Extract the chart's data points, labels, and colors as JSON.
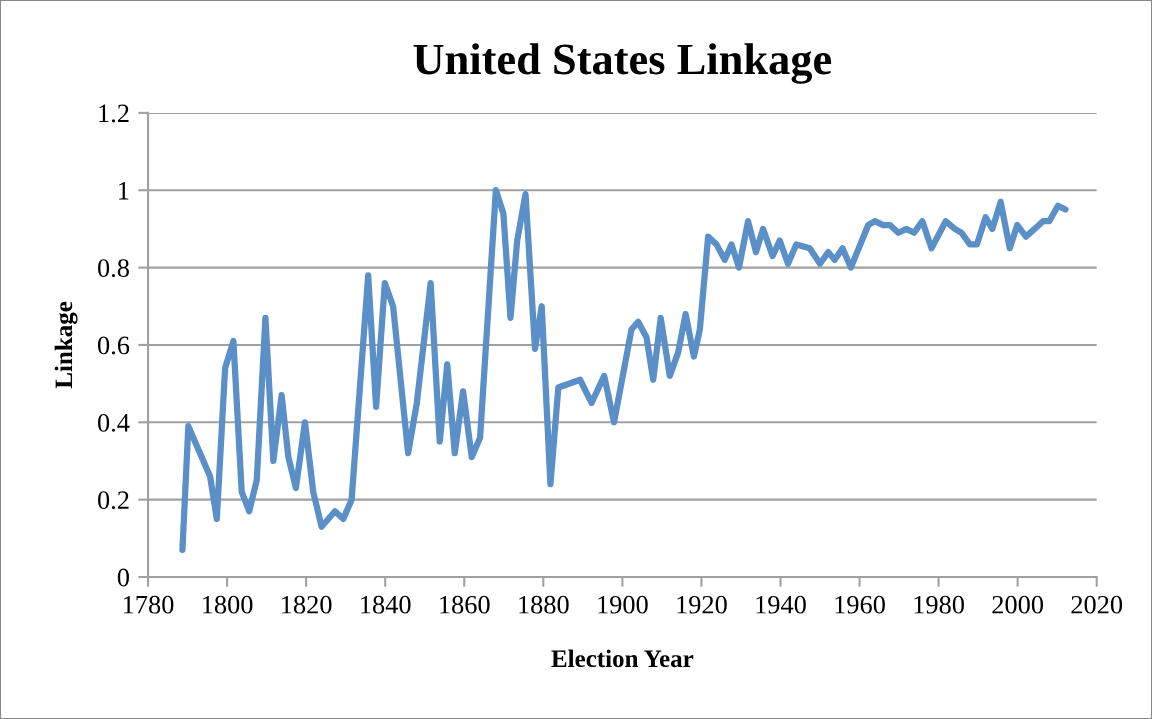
{
  "chart_data": {
    "type": "line",
    "title": "United States Linkage",
    "xlabel": "Election Year",
    "ylabel": "Linkage",
    "x": [
      1788.7,
      1790.2,
      1795.7,
      1797.4,
      1799.5,
      1801.6,
      1803.7,
      1805.6,
      1807.5,
      1809.7,
      1811.7,
      1813.8,
      1815.5,
      1817.4,
      1819.7,
      1821.8,
      1823.9,
      1827.3,
      1829.4,
      1831.5,
      1835.7,
      1837.7,
      1839.9,
      1842.0,
      1845.8,
      1848.0,
      1851.5,
      1853.8,
      1855.7,
      1857.6,
      1859.7,
      1861.9,
      1864.0,
      1868.0,
      1869.9,
      1871.7,
      1873.4,
      1875.5,
      1877.9,
      1879.6,
      1881.8,
      1883.8,
      1889.3,
      1892.2,
      1895.4,
      1897.9,
      1902.3,
      1904.0,
      1906.1,
      1907.8,
      1909.7,
      1912.0,
      1914.1,
      1916.0,
      1918.1,
      1919.6,
      1921.7,
      1923.8,
      1925.9,
      1927.6,
      1929.5,
      1931.8,
      1933.8,
      1935.6,
      1938.0,
      1939.8,
      1941.9,
      1944.0,
      1947.4,
      1950.0,
      1952.1,
      1953.7,
      1955.7,
      1957.8,
      1962.2,
      1963.9,
      1966.0,
      1967.7,
      1969.8,
      1971.9,
      1973.8,
      1975.9,
      1978.2,
      1981.8,
      1984.1,
      1985.8,
      1987.9,
      1989.7,
      1991.9,
      1993.6,
      1995.7,
      1998.0,
      1999.9,
      2002.1,
      2004.3,
      2006.4,
      2008.0,
      2010.2,
      2012.1
    ],
    "series": [
      {
        "color": "#5b8fc7",
        "values": [
          0.07,
          0.39,
          0.26,
          0.15,
          0.54,
          0.61,
          0.22,
          0.17,
          0.25,
          0.67,
          0.3,
          0.47,
          0.31,
          0.23,
          0.4,
          0.22,
          0.13,
          0.17,
          0.15,
          0.2,
          0.78,
          0.44,
          0.76,
          0.7,
          0.32,
          0.45,
          0.76,
          0.35,
          0.55,
          0.32,
          0.48,
          0.31,
          0.36,
          1.0,
          0.94,
          0.67,
          0.87,
          0.99,
          0.59,
          0.7,
          0.24,
          0.49,
          0.51,
          0.45,
          0.52,
          0.4,
          0.64,
          0.66,
          0.62,
          0.51,
          0.67,
          0.52,
          0.58,
          0.68,
          0.57,
          0.64,
          0.88,
          0.86,
          0.82,
          0.86,
          0.8,
          0.92,
          0.84,
          0.9,
          0.83,
          0.87,
          0.81,
          0.86,
          0.85,
          0.81,
          0.84,
          0.82,
          0.85,
          0.8,
          0.91,
          0.92,
          0.91,
          0.91,
          0.89,
          0.9,
          0.89,
          0.92,
          0.85,
          0.92,
          0.9,
          0.89,
          0.86,
          0.86,
          0.93,
          0.9,
          0.97,
          0.85,
          0.91,
          0.88,
          0.9,
          0.92,
          0.92,
          0.96,
          0.95
        ]
      }
    ],
    "xlim": [
      1780,
      2020
    ],
    "xticks": [
      1780,
      1800,
      1820,
      1840,
      1860,
      1880,
      1900,
      1920,
      1940,
      1960,
      1980,
      2000,
      2020
    ],
    "ylim": [
      0,
      1.2
    ],
    "yticks": [
      0,
      {
        "value": 0.2,
        "label": "0.2"
      },
      {
        "value": 0.4,
        "label": "0.4"
      },
      {
        "value": 0.6,
        "label": "0.6"
      },
      {
        "value": 0.8,
        "label": "0.8"
      },
      1,
      {
        "value": 1.2,
        "label": "1.2"
      }
    ],
    "grid": "y",
    "marker": "none",
    "line_style": "solid"
  }
}
